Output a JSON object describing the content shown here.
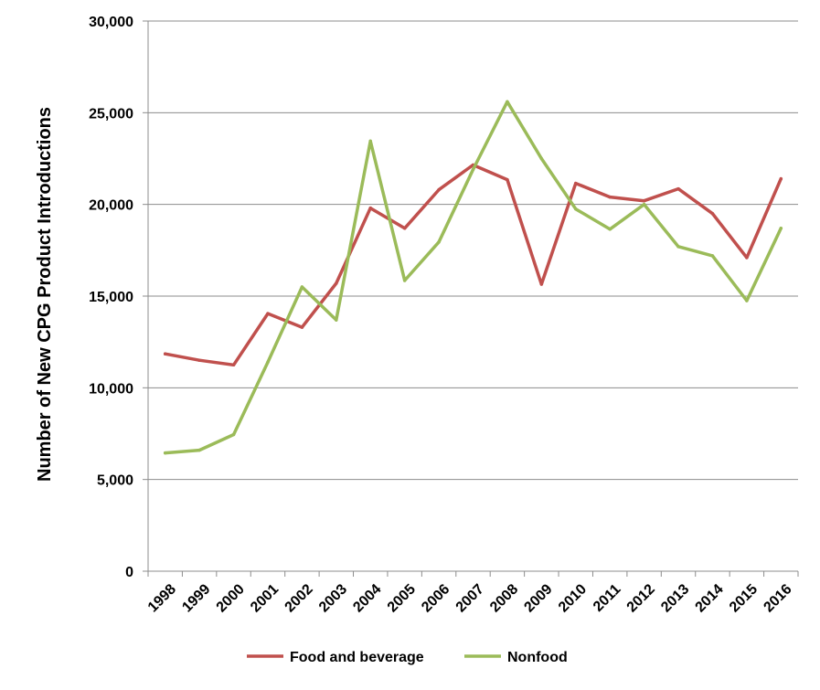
{
  "chart_data": {
    "type": "line",
    "title": "",
    "xlabel": "",
    "ylabel": "Number of New CPG Product Introductions",
    "ylim": [
      0,
      30000
    ],
    "yticks": [
      0,
      5000,
      10000,
      15000,
      20000,
      25000,
      30000
    ],
    "ytick_labels": [
      "0",
      "5,000",
      "10,000",
      "15,000",
      "20,000",
      "25,000",
      "30,000"
    ],
    "grid": true,
    "legend_position": "bottom",
    "categories": [
      "1998",
      "1999",
      "2000",
      "2001",
      "2002",
      "2003",
      "2004",
      "2005",
      "2006",
      "2007",
      "2008",
      "2009",
      "2010",
      "2011",
      "2012",
      "2013",
      "2014",
      "2015",
      "2016"
    ],
    "series": [
      {
        "name": "Food and beverage",
        "color": "#c0504d",
        "values": [
          11850,
          11500,
          11250,
          14050,
          13300,
          15700,
          19800,
          18700,
          20800,
          22150,
          21350,
          15650,
          21150,
          20400,
          20200,
          20850,
          19500,
          17100,
          21400
        ]
      },
      {
        "name": "Nonfood",
        "color": "#9bbb59",
        "values": [
          6450,
          6600,
          7450,
          11400,
          15500,
          13700,
          23450,
          15850,
          17950,
          21900,
          25600,
          22500,
          19750,
          18650,
          20000,
          17700,
          17200,
          14750,
          18700
        ]
      }
    ]
  }
}
